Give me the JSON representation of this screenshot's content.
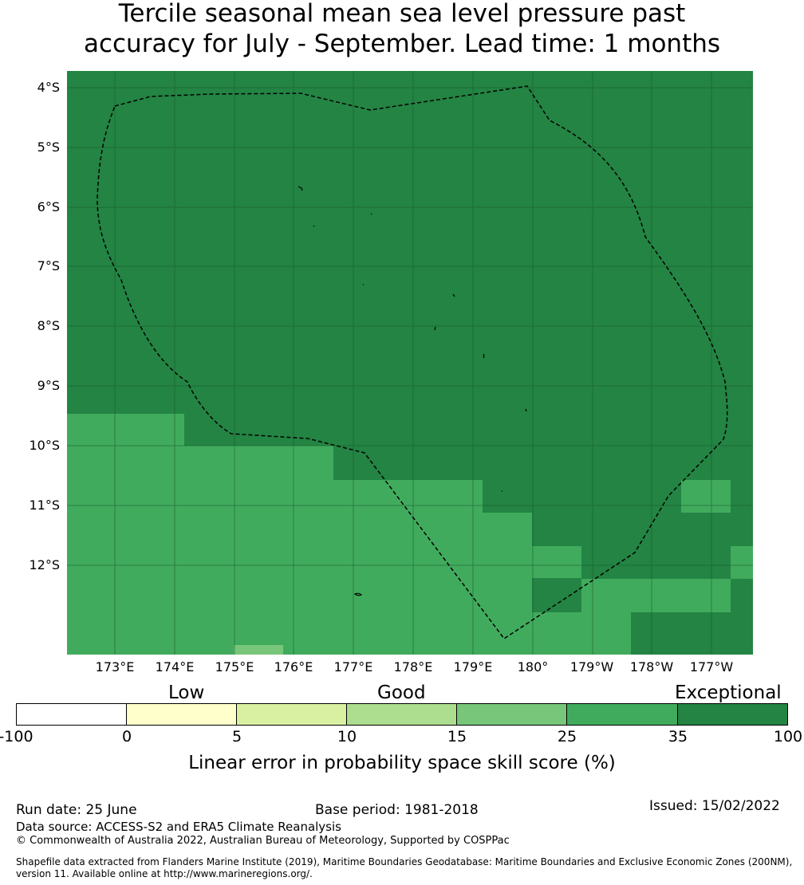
{
  "title": {
    "line1": "Tercile seasonal mean sea level pressure past",
    "line2": "accuracy for July - September. Lead time: 1 months"
  },
  "map": {
    "lat_labels": [
      "4°S",
      "5°S",
      "6°S",
      "7°S",
      "8°S",
      "9°S",
      "10°S",
      "11°S",
      "12°S"
    ],
    "lon_labels": [
      "173°E",
      "174°E",
      "175°E",
      "176°E",
      "177°E",
      "178°E",
      "179°E",
      "180°",
      "179°W",
      "178°W",
      "177°W"
    ],
    "region": "Tuvalu EEZ",
    "background_category": "35-100",
    "colors": {
      "exceptional": "#238443",
      "very_good": "#41ab5d",
      "good_high": "#78c679"
    }
  },
  "colorbar": {
    "categories": [
      "Low",
      "Good",
      "Exceptional"
    ],
    "ticks": [
      "-100",
      "0",
      "5",
      "10",
      "15",
      "25",
      "35",
      "100"
    ],
    "colors": [
      "#ffffff",
      "#ffffcc",
      "#d9f0a3",
      "#addd8e",
      "#78c679",
      "#41ab5d",
      "#238443"
    ],
    "label": "Linear error in probability space skill score (%)"
  },
  "footer": {
    "run_date": "Run date: 25 June",
    "base_period": "Base period: 1981-2018",
    "issued": "Issued: 15/02/2022",
    "data_source": "Data source: ACCESS-S2 and ERA5 Climate Reanalysis",
    "copyright": "© Commonwealth of Australia 2022, Australian Bureau of Meteorology, Supported by COSPPac",
    "shapefile_line1": "Shapefile data extracted from Flanders Marine Institute (2019), Maritime Boundaries Geodatabase: Maritime Boundaries and Exclusive Economic Zones (200NM),",
    "shapefile_line2": "version 11. Available online at http://www.marineregions.org/."
  }
}
